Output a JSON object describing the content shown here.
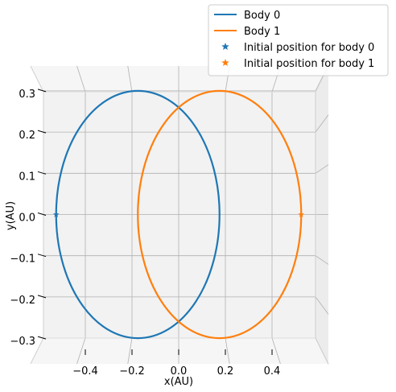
{
  "chart_data": {
    "type": "line",
    "title": "",
    "xlabel": "x(AU)",
    "ylabel": "y(AU)",
    "xlim": [
      -0.565,
      0.565
    ],
    "ylim": [
      -0.32,
      0.32
    ],
    "xticks": [
      -0.4,
      -0.2,
      0.0,
      0.2,
      0.4
    ],
    "xtick_labels": [
      "−0.4",
      "−0.2",
      "0.0",
      "0.2",
      "0.4"
    ],
    "yticks": [
      0.3,
      0.2,
      0.1,
      0.0,
      -0.1,
      -0.2,
      -0.3
    ],
    "ytick_labels": [
      "0.3",
      "0.2",
      "0.1",
      "0.0",
      "−0.1",
      "−0.2",
      "−0.3"
    ],
    "grid": true,
    "legend_position": "top-right",
    "series": [
      {
        "name": "Body 0",
        "kind": "orbit",
        "color": "#1f77b4",
        "center": [
          -0.175,
          0.0
        ],
        "semi_axes": [
          0.35,
          0.3
        ]
      },
      {
        "name": "Body 1",
        "kind": "orbit",
        "color": "#ff7f0e",
        "center": [
          0.175,
          0.0
        ],
        "semi_axes": [
          0.35,
          0.3
        ]
      },
      {
        "name": "Initial position for body 0",
        "kind": "marker",
        "color": "#1f77b4",
        "x": [
          -0.525
        ],
        "y": [
          0.0
        ]
      },
      {
        "name": "Initial position for body 1",
        "kind": "marker",
        "color": "#ff7f0e",
        "x": [
          0.525
        ],
        "y": [
          0.0
        ]
      }
    ]
  }
}
